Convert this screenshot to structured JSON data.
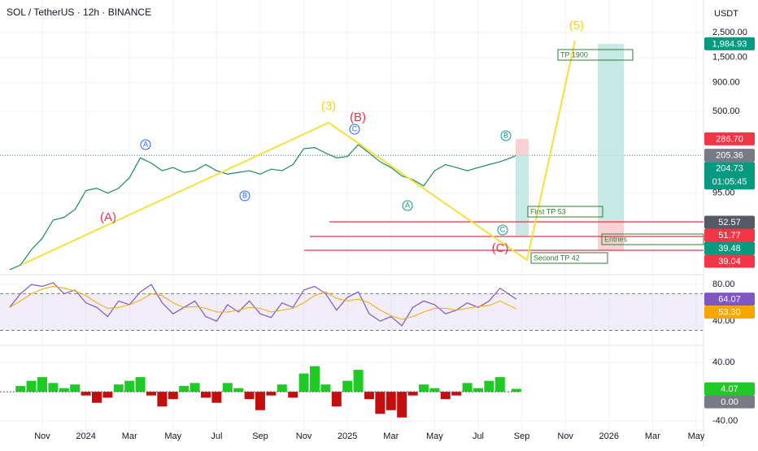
{
  "header": {
    "title": "SOL / TetherUS · 12h · BINANCE",
    "currency": "USDT"
  },
  "annotations": {
    "wave_3": "(3)",
    "wave_5": "(5)",
    "wave_a": "(A)",
    "wave_b": "(B)",
    "wave_c": "(C)",
    "a1": "A",
    "b1": "B",
    "c1": "C",
    "a2": "A",
    "b2": "B",
    "c2": "C",
    "tp1900": "TP 1900",
    "first_tp": "First TP 53",
    "second_tp": "Second TP 42",
    "entries": "Entries"
  },
  "chart_data": [
    {
      "type": "line",
      "log": true,
      "x": [
        -1.5,
        -1,
        -0.5,
        0,
        0.5,
        1,
        1.5,
        2,
        2.5,
        3,
        3.5,
        4,
        4.5,
        5,
        5.5,
        6,
        6.5,
        7,
        7.5,
        8,
        8.5,
        9,
        9.5,
        10,
        10.5,
        11,
        11.5,
        12,
        12.5,
        13,
        13.5,
        14,
        14.5,
        15,
        15.5,
        16,
        16.5,
        17,
        17.5,
        18,
        18.5,
        19,
        19.5,
        20,
        20.5,
        21,
        21.5,
        21.75
      ],
      "series": [
        {
          "color": "#1e8a6a",
          "values": [
            20,
            22,
            30,
            38,
            55,
            58,
            68,
            100,
            105,
            95,
            105,
            130,
            195,
            175,
            150,
            160,
            145,
            150,
            170,
            150,
            140,
            145,
            150,
            140,
            155,
            150,
            170,
            235,
            240,
            215,
            195,
            200,
            255,
            215,
            180,
            160,
            135,
            125,
            110,
            150,
            170,
            160,
            150,
            160,
            170,
            180,
            195,
            204.73
          ]
        }
      ],
      "xlim": [
        -1.94,
        30.3
      ],
      "xticks": [
        {
          "value": 0,
          "label": "Nov"
        },
        {
          "value": 2,
          "label": "2024"
        },
        {
          "value": 4,
          "label": "Mar"
        },
        {
          "value": 6,
          "label": "May"
        },
        {
          "value": 8,
          "label": "Jul"
        },
        {
          "value": 10,
          "label": "Sep"
        },
        {
          "value": 12,
          "label": "Nov"
        },
        {
          "value": 14,
          "label": "2025"
        },
        {
          "value": 16,
          "label": "Mar"
        },
        {
          "value": 18,
          "label": "May"
        },
        {
          "value": 20,
          "label": "Jul"
        },
        {
          "value": 22,
          "label": "Sep"
        },
        {
          "value": 24,
          "label": "Nov"
        },
        {
          "value": 26,
          "label": "2026"
        },
        {
          "value": 28,
          "label": "Mar"
        },
        {
          "value": 30,
          "label": "May"
        }
      ],
      "ylim": [
        19,
        4840
      ],
      "yticks": [
        {
          "value": 2500,
          "label": "2,500.00"
        },
        {
          "value": 1500,
          "label": "1,500.00"
        },
        {
          "value": 900,
          "label": "900.00"
        },
        {
          "value": 500,
          "label": "500.00"
        },
        {
          "value": 95,
          "label": "95.00"
        }
      ],
      "markers": [
        {
          "value": 1984.93,
          "label": "1,984.93",
          "color": "#089981"
        },
        {
          "value": 286.7,
          "label": "286.70",
          "color": "#f23645"
        },
        {
          "value": 205.36,
          "color": "#787b86"
        },
        {
          "value": 204.73,
          "sublabel": "01:05:45",
          "color": "#089981"
        },
        {
          "value": 52.57,
          "color": "#555a64"
        },
        {
          "value": 51.77,
          "color": "#f23645"
        },
        {
          "value": 39.48,
          "color": "#089981"
        },
        {
          "value": 39.04,
          "color": "#f23645"
        }
      ]
    },
    {
      "type": "line",
      "x": [
        -1.5,
        -1,
        -0.5,
        0,
        0.5,
        1,
        1.5,
        2,
        2.5,
        3,
        3.5,
        4,
        4.5,
        5,
        5.5,
        6,
        6.5,
        7,
        7.5,
        8,
        8.5,
        9,
        9.5,
        10,
        10.5,
        11,
        11.5,
        12,
        12.5,
        13,
        13.5,
        14,
        14.5,
        15,
        15.5,
        16,
        16.5,
        17,
        17.5,
        18,
        18.5,
        19,
        19.5,
        20,
        20.5,
        21,
        21.75
      ],
      "series": [
        {
          "color": "#7e57c2",
          "values": [
            55,
            70,
            80,
            78,
            82,
            70,
            74,
            60,
            55,
            45,
            62,
            58,
            72,
            80,
            60,
            48,
            55,
            62,
            45,
            40,
            58,
            50,
            62,
            48,
            44,
            60,
            55,
            74,
            78,
            70,
            52,
            66,
            72,
            48,
            40,
            45,
            35,
            55,
            62,
            58,
            48,
            52,
            60,
            55,
            62,
            76,
            64.07
          ]
        },
        {
          "color": "#f7a600",
          "values": [
            55,
            62,
            70,
            75,
            78,
            76,
            73,
            68,
            60,
            54,
            55,
            58,
            63,
            70,
            68,
            60,
            55,
            56,
            54,
            50,
            50,
            52,
            55,
            54,
            50,
            52,
            54,
            60,
            68,
            72,
            65,
            62,
            64,
            60,
            52,
            46,
            42,
            45,
            50,
            54,
            54,
            52,
            54,
            56,
            57,
            62,
            53.3
          ]
        }
      ],
      "band": [
        30,
        70
      ],
      "ylim": [
        18,
        89
      ],
      "yticks": [
        {
          "value": 80,
          "label": "80.00"
        },
        {
          "value": 40,
          "label": "40.00"
        }
      ],
      "markers": [
        {
          "value": 64.07,
          "color": "#7e57c2"
        },
        {
          "value": 53.3,
          "label": "53.30",
          "color": "#f7a600"
        }
      ]
    },
    {
      "type": "bar",
      "x": [
        -1.5,
        -1,
        -0.5,
        0,
        0.5,
        1,
        1.5,
        2,
        2.5,
        3,
        3.5,
        4,
        4.5,
        5,
        5.5,
        6,
        6.5,
        7,
        7.5,
        8,
        8.5,
        9,
        9.5,
        10,
        10.5,
        11,
        11.5,
        12,
        12.5,
        13,
        13.5,
        14,
        14.5,
        15,
        15.5,
        16,
        16.5,
        17,
        17.5,
        18,
        18.5,
        19,
        19.5,
        20,
        20.5,
        21,
        21.75
      ],
      "values": [
        0,
        8,
        15,
        20,
        12,
        5,
        10,
        -5,
        -15,
        -8,
        10,
        15,
        20,
        -5,
        -20,
        -10,
        8,
        12,
        -8,
        -15,
        12,
        5,
        -10,
        -25,
        -5,
        10,
        -8,
        25,
        35,
        10,
        -20,
        15,
        30,
        -10,
        -30,
        -25,
        -35,
        -5,
        10,
        5,
        -10,
        -5,
        12,
        5,
        15,
        20,
        4.07
      ],
      "colors": {
        "positive": "#1fc926",
        "negative": "#c40d0d"
      },
      "ylim": [
        -53,
        60
      ],
      "yticks": [
        {
          "value": 40,
          "label": "40.00"
        },
        {
          "value": -40,
          "label": "-40.00"
        }
      ],
      "markers": [
        {
          "value": 4.07,
          "color": "#1fc926"
        },
        {
          "value": 0,
          "label": "0.00",
          "color": "#787b86"
        }
      ]
    }
  ]
}
